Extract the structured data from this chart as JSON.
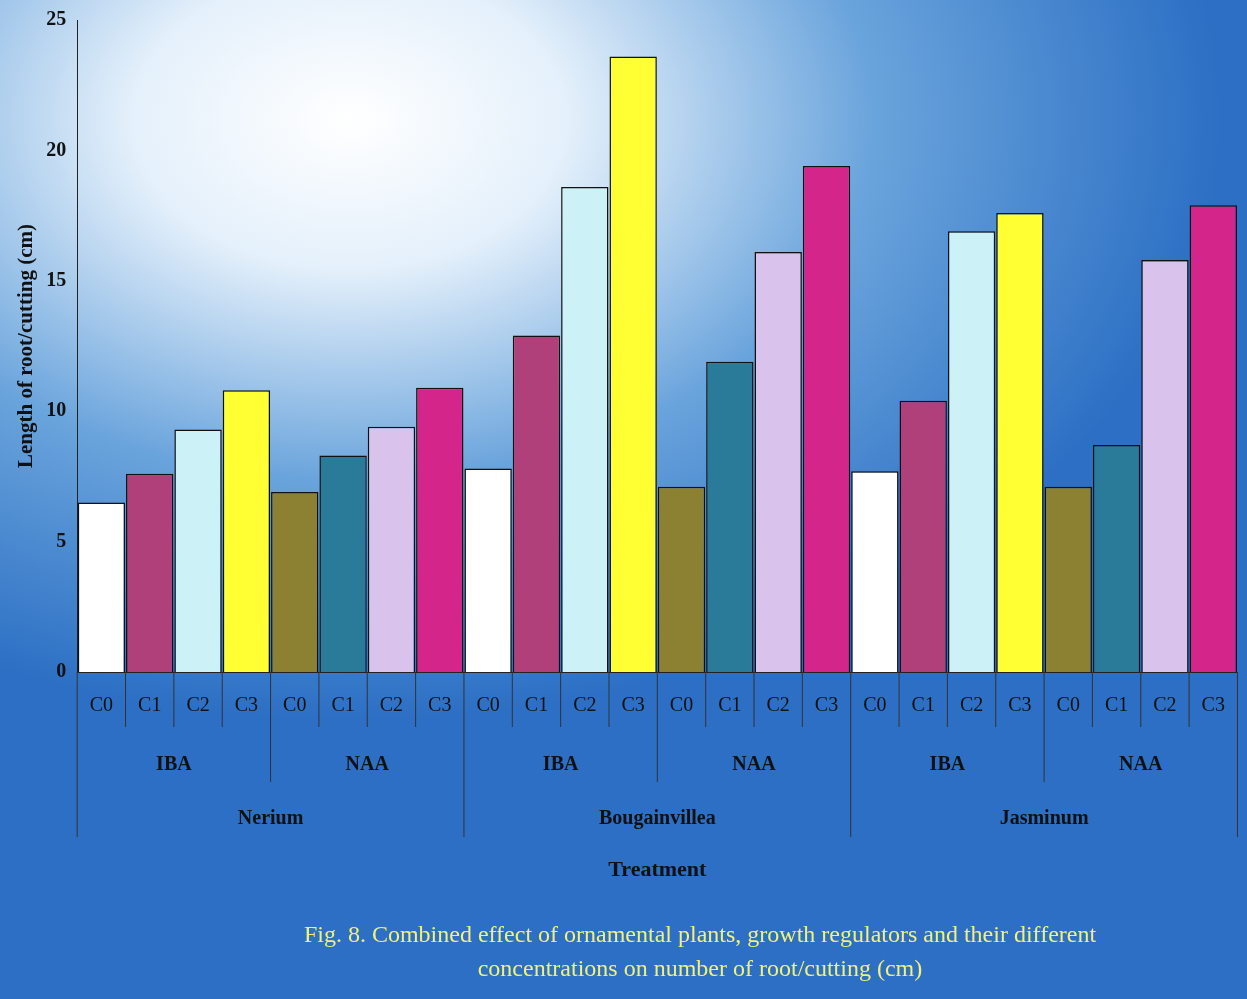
{
  "chart_data": {
    "type": "bar",
    "ylabel": "Length of root/cutting (cm)",
    "categories": [
      "C0",
      "C1",
      "C2",
      "C3",
      "C0",
      "C1",
      "C2",
      "C3",
      "C0",
      "C1",
      "C2",
      "C3",
      "C0",
      "C1",
      "C2",
      "C3",
      "C0",
      "C1",
      "C2",
      "C3",
      "C0",
      "C1",
      "C2",
      "C3"
    ],
    "values": [
      6.5,
      7.6,
      9.3,
      10.8,
      6.9,
      8.3,
      9.4,
      10.9,
      7.8,
      12.9,
      18.6,
      23.6,
      7.1,
      11.9,
      16.1,
      19.4,
      7.7,
      10.4,
      16.9,
      17.6,
      7.1,
      8.7,
      15.8,
      17.9
    ],
    "colors": [
      "#ffffff",
      "#b0407a",
      "#ccf2f8",
      "#ffff33",
      "#8c8033",
      "#2a7a9a",
      "#d9c2ec",
      "#d4268a",
      "#ffffff",
      "#b0407a",
      "#ccf2f8",
      "#ffff33",
      "#8c8033",
      "#2a7a9a",
      "#d9c2ec",
      "#d4268a",
      "#ffffff",
      "#b0407a",
      "#ccf2f8",
      "#ffff33",
      "#8c8033",
      "#2a7a9a",
      "#d9c2ec",
      "#d4268a"
    ],
    "ylim": [
      0,
      25
    ],
    "yticks": [
      0,
      5,
      10,
      15,
      20,
      25
    ],
    "grid": false,
    "legend": false,
    "annotations": [
      "IBA",
      "NAA",
      "IBA",
      "NAA",
      "IBA",
      "NAA",
      "Nerium",
      "Bougainvillea",
      "Jasminum",
      "Treatment",
      "Fig. 8. Combined effect of ornamental plants, growth regulators and their different concentrations on number of root/cutting (cm)"
    ]
  }
}
